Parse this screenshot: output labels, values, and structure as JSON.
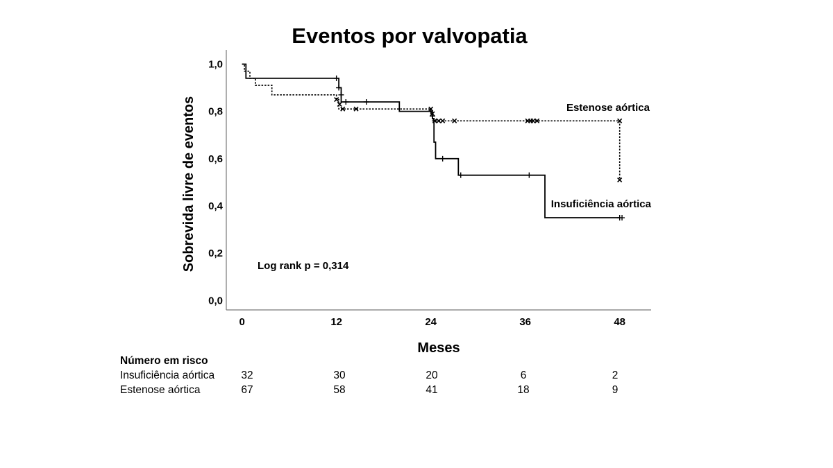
{
  "title": "Eventos por valvopatia",
  "chart_data": {
    "type": "line",
    "title": "Eventos por valvopatia",
    "xlabel": "Meses",
    "ylabel": "Sobrevida livre de eventos",
    "xlim": [
      -2,
      52
    ],
    "ylim": [
      -0.04,
      1.06
    ],
    "x_ticks": [
      0,
      12,
      24,
      36,
      48
    ],
    "x_tick_labels": [
      "0",
      "12",
      "24",
      "36",
      "48"
    ],
    "y_ticks": [
      0,
      0.2,
      0.4,
      0.6,
      0.8,
      1.0
    ],
    "y_tick_labels": [
      "0,0",
      "0,2",
      "0,4",
      "0,6",
      "0,8",
      "1,0"
    ],
    "grid": false,
    "series": [
      {
        "name": "Insuficiência aórtica",
        "style": "solid",
        "censor_marker": "plus",
        "steps": [
          [
            0,
            1.0
          ],
          [
            0.5,
            0.97
          ],
          [
            0.5,
            0.94
          ],
          [
            12,
            0.94
          ],
          [
            12.3,
            0.9
          ],
          [
            12.6,
            0.87
          ],
          [
            12.6,
            0.84
          ],
          [
            20,
            0.84
          ],
          [
            20,
            0.8
          ],
          [
            24.2,
            0.8
          ],
          [
            24.2,
            0.77
          ],
          [
            24.4,
            0.67
          ],
          [
            24.6,
            0.6
          ],
          [
            27.5,
            0.6
          ],
          [
            27.5,
            0.53
          ],
          [
            38.5,
            0.53
          ],
          [
            38.5,
            0.35
          ],
          [
            48,
            0.35
          ]
        ],
        "censored": [
          [
            12,
            0.94
          ],
          [
            12.3,
            0.9
          ],
          [
            12.6,
            0.87
          ],
          [
            13.2,
            0.84
          ],
          [
            15.8,
            0.84
          ],
          [
            24.2,
            0.78
          ],
          [
            25.5,
            0.6
          ],
          [
            27.8,
            0.53
          ],
          [
            36.5,
            0.53
          ],
          [
            48,
            0.35
          ],
          [
            48.3,
            0.35
          ]
        ]
      },
      {
        "name": "Estenose aórtica",
        "style": "dotted",
        "censor_marker": "x",
        "steps": [
          [
            0,
            1.0
          ],
          [
            0.3,
            0.97
          ],
          [
            1.0,
            0.94
          ],
          [
            1.7,
            0.94
          ],
          [
            1.7,
            0.91
          ],
          [
            3.2,
            0.91
          ],
          [
            3.8,
            0.87
          ],
          [
            12,
            0.87
          ],
          [
            12,
            0.85
          ],
          [
            12.3,
            0.81
          ],
          [
            24,
            0.81
          ],
          [
            24,
            0.79
          ],
          [
            24.2,
            0.76
          ],
          [
            48,
            0.76
          ],
          [
            48,
            0.51
          ]
        ],
        "censored": [
          [
            12,
            0.85
          ],
          [
            12.4,
            0.83
          ],
          [
            12.8,
            0.81
          ],
          [
            14.5,
            0.81
          ],
          [
            24,
            0.81
          ],
          [
            24.2,
            0.79
          ],
          [
            24.5,
            0.76
          ],
          [
            25,
            0.76
          ],
          [
            25.5,
            0.76
          ],
          [
            27,
            0.76
          ],
          [
            36.3,
            0.76
          ],
          [
            36.7,
            0.76
          ],
          [
            37.0,
            0.76
          ],
          [
            37.5,
            0.76
          ],
          [
            48,
            0.76
          ],
          [
            48,
            0.51
          ]
        ]
      }
    ],
    "annotations": [
      {
        "text": "Estenose aórtica"
      },
      {
        "text": "Insuficiência aórtica"
      },
      {
        "text": "Log rank p = 0,314"
      }
    ]
  },
  "risk_table": {
    "heading": "Número em risco",
    "rows": [
      {
        "label": "Insuficiência aórtica",
        "values": [
          "32",
          "30",
          "20",
          "6",
          "2"
        ]
      },
      {
        "label": "Estenose aórtica",
        "values": [
          "67",
          "58",
          "41",
          "18",
          "9"
        ]
      }
    ]
  }
}
